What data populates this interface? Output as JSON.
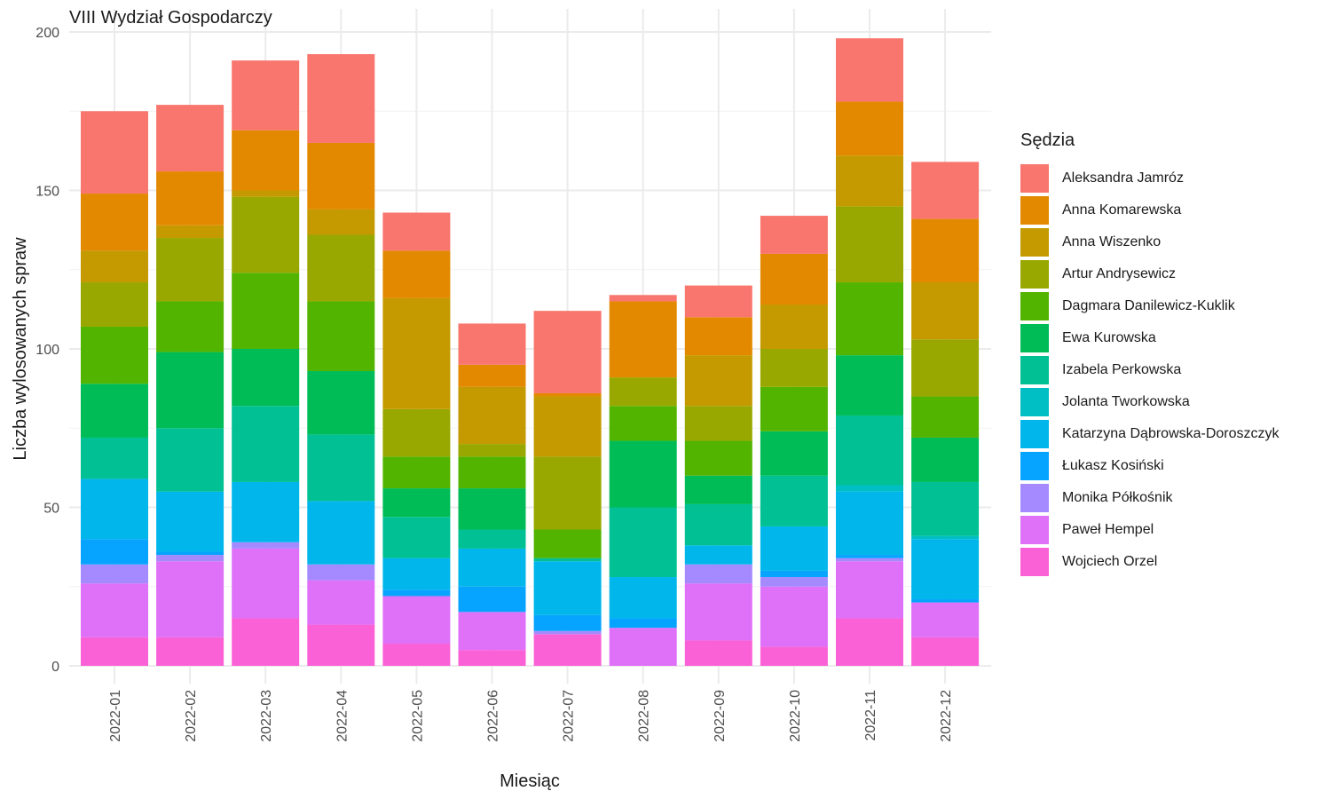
{
  "chart_data": {
    "type": "bar",
    "stacked": true,
    "title": "VIII Wydział Gospodarczy",
    "xlabel": "Miesiąc",
    "ylabel": "Liczba wylosowanych spraw",
    "ylim": [
      0,
      200
    ],
    "yticks": [
      "0",
      "50",
      "100",
      "150",
      "200"
    ],
    "grid": true,
    "legend_title": "Sędzia",
    "legend_position": "right",
    "categories": [
      "2022-01",
      "2022-02",
      "2022-03",
      "2022-04",
      "2022-05",
      "2022-06",
      "2022-07",
      "2022-08",
      "2022-09",
      "2022-10",
      "2022-11",
      "2022-12"
    ],
    "series": [
      {
        "name": "Aleksandra Jamróz",
        "color": "#F8766D",
        "values": [
          26,
          21,
          22,
          28,
          12,
          13,
          26,
          2,
          10,
          12,
          20,
          18
        ]
      },
      {
        "name": "Anna Komarewska",
        "color": "#E38900",
        "values": [
          18,
          17,
          19,
          21,
          15,
          7,
          1,
          24,
          12,
          16,
          17,
          20
        ]
      },
      {
        "name": "Anna Wiszenko",
        "color": "#C49A00",
        "values": [
          10,
          4,
          2,
          8,
          35,
          18,
          19,
          0,
          16,
          14,
          16,
          18
        ]
      },
      {
        "name": "Artur Andrysewicz",
        "color": "#99A800",
        "values": [
          14,
          20,
          24,
          21,
          15,
          4,
          23,
          9,
          11,
          12,
          24,
          18
        ]
      },
      {
        "name": "Dagmara Danilewicz-Kuklik",
        "color": "#53B400",
        "values": [
          18,
          16,
          24,
          22,
          10,
          10,
          9,
          11,
          11,
          14,
          23,
          13
        ]
      },
      {
        "name": "Ewa Kurowska",
        "color": "#00BC56",
        "values": [
          17,
          24,
          18,
          20,
          9,
          13,
          0,
          21,
          9,
          14,
          19,
          14
        ]
      },
      {
        "name": "Izabela Perkowska",
        "color": "#00C094",
        "values": [
          13,
          20,
          24,
          21,
          13,
          6,
          1,
          22,
          13,
          16,
          22,
          17
        ]
      },
      {
        "name": "Jolanta Tworkowska",
        "color": "#00BFC4",
        "values": [
          0,
          0,
          0,
          0,
          0,
          0,
          0,
          0,
          0,
          0,
          2,
          1
        ]
      },
      {
        "name": "Katarzyna Dąbrowska-Doroszczyk",
        "color": "#00B6EB",
        "values": [
          19,
          19,
          19,
          20,
          10,
          12,
          17,
          13,
          6,
          14,
          20,
          19
        ]
      },
      {
        "name": "Łukasz Kosiński",
        "color": "#06A4FF",
        "values": [
          8,
          1,
          0,
          0,
          2,
          8,
          5,
          3,
          0,
          2,
          1,
          1
        ]
      },
      {
        "name": "Monika Półkośnik",
        "color": "#A58AFF",
        "values": [
          6,
          2,
          2,
          5,
          0,
          0,
          1,
          0,
          6,
          3,
          1,
          0
        ]
      },
      {
        "name": "Paweł Hempel",
        "color": "#DF70F8",
        "values": [
          17,
          24,
          22,
          14,
          15,
          12,
          0,
          12,
          18,
          19,
          18,
          11
        ]
      },
      {
        "name": "Wojciech Orzel",
        "color": "#FB61D7",
        "values": [
          9,
          9,
          15,
          13,
          7,
          5,
          10,
          0,
          8,
          6,
          15,
          9
        ]
      }
    ]
  }
}
